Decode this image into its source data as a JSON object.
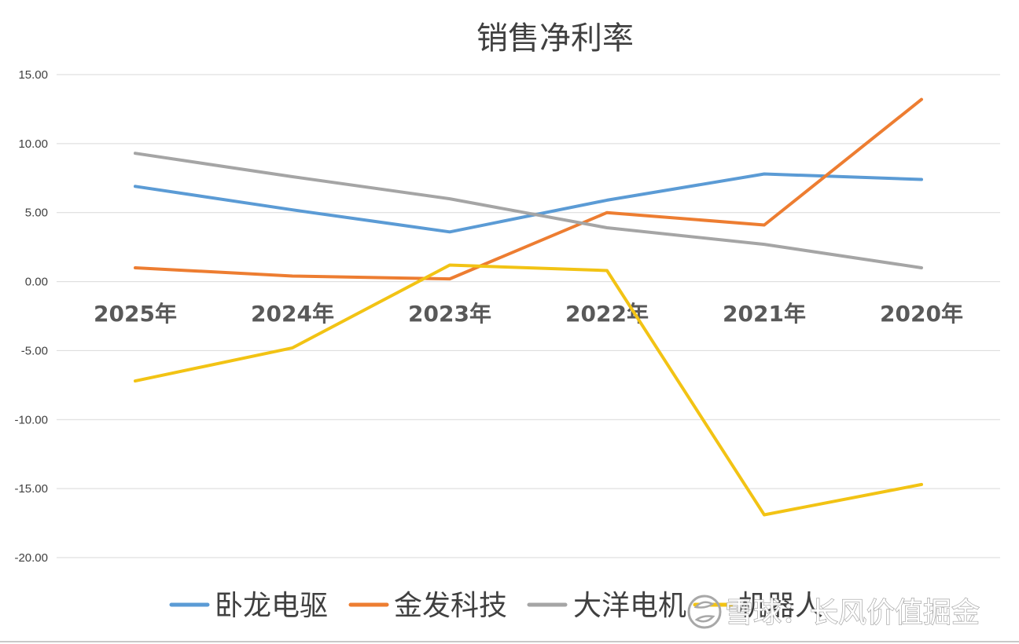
{
  "chart_data": {
    "type": "line",
    "title": "销售净利率",
    "xlabel": "",
    "ylabel": "",
    "categories": [
      "2025年",
      "2024年",
      "2023年",
      "2022年",
      "2021年",
      "2020年"
    ],
    "ylim": [
      -20,
      15
    ],
    "yticks": [
      "15.00",
      "10.00",
      "5.00",
      "0.00",
      "-5.00",
      "-10.00",
      "-15.00",
      "-20.00"
    ],
    "ytick_values": [
      15,
      10,
      5,
      0,
      -5,
      -10,
      -15,
      -20
    ],
    "grid": true,
    "legend_position": "bottom",
    "series": [
      {
        "name": "卧龙电驱",
        "color": "#5b9bd5",
        "values": [
          6.9,
          5.2,
          3.6,
          5.9,
          7.8,
          7.4
        ]
      },
      {
        "name": "金发科技",
        "color": "#ed7d31",
        "values": [
          1.0,
          0.4,
          0.2,
          5.0,
          4.1,
          13.2
        ]
      },
      {
        "name": "大洋电机",
        "color": "#a5a5a5",
        "values": [
          9.3,
          7.6,
          6.0,
          3.9,
          2.7,
          1.0
        ]
      },
      {
        "name": "机器人",
        "color": "#f2c314",
        "values": [
          -7.2,
          -4.8,
          1.2,
          0.8,
          -16.9,
          -14.7
        ]
      }
    ]
  },
  "watermark": {
    "text": "雪球：长风价值掘金",
    "icon": "xueqiu-snowball-icon"
  }
}
